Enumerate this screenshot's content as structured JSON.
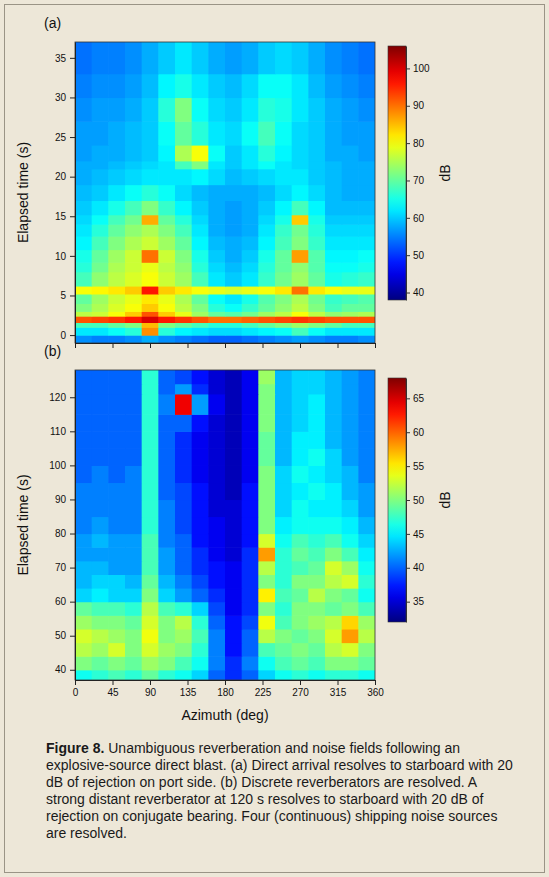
{
  "chart_data": [
    {
      "type": "heatmap",
      "title": "(a)",
      "ylabel": "Elapsed time (s)",
      "tick_labels": "y",
      "xlim": [
        0,
        360
      ],
      "ylim": [
        -1,
        37
      ],
      "xticks": [
        0,
        45,
        90,
        135,
        180,
        225,
        270,
        315,
        360
      ],
      "yticks": [
        0,
        5,
        10,
        15,
        20,
        25,
        30,
        35
      ],
      "x_edges": [
        0,
        20,
        40,
        60,
        80,
        100,
        120,
        140,
        160,
        180,
        200,
        220,
        240,
        260,
        280,
        300,
        320,
        340,
        360
      ],
      "y_edges": [
        -1,
        0,
        1,
        1.6,
        2.4,
        3,
        4,
        5.2,
        6.2,
        8,
        9.2,
        10.8,
        12.5,
        14,
        15.2,
        17,
        19,
        21,
        22,
        24,
        27,
        30,
        33,
        37
      ],
      "values": [
        [
          56,
          55,
          55,
          56,
          58,
          56,
          55,
          54,
          53,
          53,
          54,
          55,
          56,
          57,
          56,
          55,
          55,
          56
        ],
        [
          62,
          62,
          64,
          66,
          88,
          66,
          63,
          62,
          61,
          61,
          62,
          63,
          64,
          68,
          64,
          62,
          62,
          62
        ],
        [
          68,
          68,
          70,
          72,
          85,
          72,
          70,
          68,
          66,
          66,
          68,
          70,
          72,
          74,
          72,
          70,
          68,
          68
        ],
        [
          92,
          93,
          94,
          96,
          100,
          96,
          94,
          92,
          90,
          90,
          91,
          92,
          93,
          94,
          93,
          92,
          92,
          92
        ],
        [
          76,
          77,
          80,
          84,
          92,
          84,
          79,
          74,
          70,
          69,
          71,
          74,
          76,
          80,
          76,
          73,
          74,
          75
        ],
        [
          72,
          75,
          78,
          80,
          84,
          80,
          76,
          72,
          66,
          64,
          67,
          70,
          73,
          76,
          72,
          68,
          70,
          70
        ],
        [
          70,
          74,
          77,
          79,
          82,
          79,
          75,
          70,
          64,
          62,
          65,
          69,
          72,
          75,
          71,
          67,
          68,
          69
        ],
        [
          80,
          81,
          82,
          84,
          96,
          84,
          82,
          80,
          79,
          78,
          79,
          80,
          82,
          90,
          82,
          80,
          79,
          79
        ],
        [
          68,
          73,
          76,
          78,
          80,
          77,
          74,
          68,
          62,
          60,
          62,
          67,
          71,
          74,
          70,
          65,
          66,
          67
        ],
        [
          66,
          71,
          75,
          77,
          79,
          76,
          73,
          66,
          61,
          59,
          61,
          66,
          70,
          73,
          69,
          64,
          64,
          65
        ],
        [
          65,
          70,
          74,
          77,
          90,
          77,
          72,
          65,
          60,
          58,
          60,
          65,
          70,
          87,
          69,
          63,
          63,
          64
        ],
        [
          63,
          68,
          72,
          75,
          77,
          74,
          70,
          63,
          59,
          58,
          59,
          63,
          68,
          72,
          67,
          62,
          62,
          62
        ],
        [
          62,
          66,
          70,
          73,
          75,
          72,
          68,
          62,
          58,
          57,
          58,
          62,
          67,
          71,
          66,
          61,
          61,
          61
        ],
        [
          61,
          64,
          68,
          71,
          86,
          70,
          66,
          61,
          58,
          57,
          58,
          61,
          65,
          84,
          65,
          60,
          60,
          60
        ],
        [
          60,
          62,
          65,
          68,
          72,
          67,
          63,
          60,
          58,
          57,
          58,
          60,
          63,
          68,
          63,
          59,
          59,
          59
        ],
        [
          59,
          60,
          62,
          64,
          66,
          64,
          61,
          59,
          58,
          58,
          58,
          59,
          61,
          63,
          61,
          59,
          58,
          58
        ],
        [
          58,
          59,
          60,
          61,
          62,
          62,
          62,
          63,
          61,
          59,
          60,
          61,
          62,
          62,
          60,
          59,
          58,
          58
        ],
        [
          58,
          58,
          59,
          60,
          61,
          62,
          68,
          72,
          62,
          60,
          62,
          64,
          62,
          61,
          60,
          59,
          58,
          58
        ],
        [
          57,
          58,
          58,
          59,
          60,
          63,
          75,
          80,
          64,
          60,
          62,
          66,
          63,
          61,
          60,
          58,
          58,
          57
        ],
        [
          57,
          57,
          58,
          59,
          60,
          64,
          70,
          66,
          62,
          61,
          64,
          68,
          64,
          61,
          60,
          58,
          57,
          57
        ],
        [
          56,
          57,
          57,
          58,
          60,
          66,
          72,
          64,
          61,
          60,
          62,
          66,
          65,
          62,
          60,
          58,
          57,
          56
        ],
        [
          55,
          56,
          56,
          57,
          59,
          63,
          65,
          62,
          60,
          59,
          61,
          64,
          64,
          62,
          59,
          57,
          56,
          55
        ],
        [
          54,
          55,
          55,
          56,
          58,
          60,
          62,
          60,
          58,
          57,
          58,
          60,
          61,
          60,
          58,
          56,
          55,
          54
        ]
      ],
      "colorbar": {
        "label": "dB",
        "lim": [
          38,
          106
        ],
        "ticks": [
          40,
          50,
          60,
          70,
          80,
          90,
          100
        ]
      }
    },
    {
      "type": "heatmap",
      "title": "(b)",
      "xlabel": "Azimuth (deg)",
      "ylabel": "Elapsed time (s)",
      "xlim": [
        0,
        360
      ],
      "ylim": [
        37,
        128
      ],
      "xticks": [
        0,
        45,
        90,
        135,
        180,
        225,
        270,
        315,
        360
      ],
      "yticks": [
        40,
        50,
        60,
        70,
        80,
        90,
        100,
        110,
        120
      ],
      "x_edges": [
        0,
        20,
        40,
        60,
        80,
        100,
        120,
        140,
        160,
        180,
        200,
        220,
        240,
        260,
        280,
        300,
        320,
        340,
        360
      ],
      "y_edges": [
        37,
        40,
        44,
        48,
        52,
        56,
        60,
        64,
        68,
        72,
        76,
        80,
        85,
        90,
        95,
        100,
        105,
        110,
        115,
        121,
        124,
        128
      ],
      "values": [
        [
          46,
          47,
          48,
          47,
          49,
          47,
          46,
          44,
          40,
          38,
          40,
          44,
          46,
          47,
          46,
          47,
          47,
          46
        ],
        [
          50,
          49,
          50,
          49,
          51,
          50,
          48,
          46,
          41,
          38,
          41,
          46,
          48,
          49,
          48,
          50,
          50,
          49
        ],
        [
          52,
          51,
          53,
          50,
          53,
          51,
          50,
          47,
          41,
          37,
          40,
          48,
          49,
          50,
          49,
          52,
          53,
          50
        ],
        [
          53,
          52,
          51,
          50,
          54,
          50,
          51,
          48,
          41,
          37,
          40,
          52,
          50,
          49,
          50,
          53,
          58,
          52
        ],
        [
          51,
          50,
          50,
          49,
          53,
          50,
          52,
          47,
          40,
          37,
          39,
          54,
          48,
          50,
          51,
          52,
          56,
          51
        ],
        [
          49,
          48,
          48,
          47,
          52,
          48,
          47,
          44,
          39,
          36,
          38,
          50,
          47,
          50,
          50,
          49,
          50,
          48
        ],
        [
          44,
          45,
          44,
          44,
          50,
          44,
          42,
          40,
          38,
          36,
          38,
          55,
          48,
          49,
          52,
          50,
          49,
          46
        ],
        [
          43,
          44,
          44,
          43,
          49,
          43,
          41,
          39,
          37,
          36,
          38,
          50,
          47,
          50,
          50,
          52,
          53,
          47
        ],
        [
          43,
          43,
          42,
          42,
          48,
          42,
          40,
          38,
          37,
          36,
          38,
          52,
          47,
          48,
          49,
          53,
          51,
          46
        ],
        [
          42,
          42,
          42,
          42,
          48,
          42,
          40,
          38,
          36,
          35,
          38,
          58,
          47,
          49,
          48,
          50,
          48,
          45
        ],
        [
          42,
          43,
          42,
          42,
          48,
          41,
          40,
          37,
          36,
          35,
          37,
          53,
          46,
          48,
          47,
          48,
          46,
          44
        ],
        [
          41,
          42,
          41,
          41,
          47,
          41,
          39,
          37,
          36,
          35,
          37,
          50,
          45,
          46,
          46,
          46,
          45,
          43
        ],
        [
          41,
          41,
          41,
          41,
          47,
          41,
          39,
          37,
          35,
          35,
          37,
          50,
          44,
          46,
          45,
          45,
          44,
          42
        ],
        [
          41,
          41,
          41,
          41,
          47,
          40,
          39,
          37,
          35,
          34,
          37,
          50,
          44,
          45,
          46,
          45,
          43,
          42
        ],
        [
          40,
          41,
          40,
          41,
          47,
          40,
          38,
          36,
          35,
          34,
          36,
          50,
          44,
          46,
          45,
          44,
          43,
          41
        ],
        [
          40,
          40,
          40,
          40,
          47,
          40,
          38,
          36,
          35,
          34,
          36,
          49,
          43,
          45,
          46,
          44,
          42,
          41
        ],
        [
          40,
          40,
          40,
          40,
          47,
          40,
          38,
          36,
          35,
          34,
          36,
          49,
          43,
          45,
          45,
          43,
          42,
          41
        ],
        [
          40,
          40,
          40,
          40,
          47,
          40,
          40,
          37,
          35,
          34,
          36,
          50,
          43,
          44,
          45,
          43,
          42,
          41
        ],
        [
          40,
          40,
          40,
          40,
          47,
          41,
          64,
          42,
          36,
          34,
          36,
          50,
          43,
          44,
          45,
          43,
          42,
          41
        ],
        [
          40,
          40,
          40,
          40,
          47,
          40,
          42,
          38,
          35,
          34,
          36,
          50,
          43,
          44,
          44,
          43,
          42,
          41
        ],
        [
          40,
          40,
          40,
          40,
          47,
          40,
          39,
          37,
          35,
          34,
          36,
          51,
          43,
          44,
          44,
          43,
          42,
          41
        ]
      ],
      "colorbar": {
        "label": "dB",
        "lim": [
          32,
          68
        ],
        "ticks": [
          35,
          40,
          45,
          50,
          55,
          60,
          65
        ]
      }
    }
  ],
  "caption": {
    "label": "Figure 8.",
    "text": "Unambiguous reverberation and noise fields following an explosive-source direct blast. (a) Direct arrival resolves to starboard with 20 dB of rejection on port side. (b) Discrete reverberators are resolved. A strong distant reverberator at 120 s resolves to starboard with 20 dB of rejection on conjugate bearing. Four (continuous) shipping noise sources are resolved."
  }
}
